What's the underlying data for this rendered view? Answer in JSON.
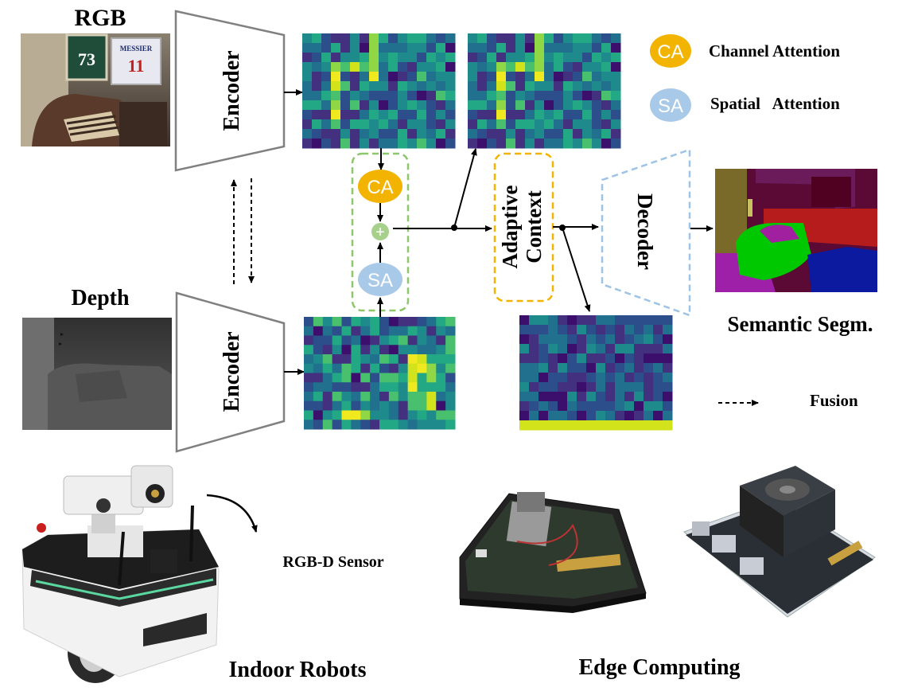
{
  "labels": {
    "rgb": "RGB",
    "depth": "Depth",
    "encoder_top": "Encoder",
    "encoder_bottom": "Encoder",
    "decoder": "Decoder",
    "adaptive_line1": "Adaptive",
    "adaptive_line2": "Context",
    "semantic_segm": "Semantic Segm.",
    "fusion": "Fusion",
    "rgbd_sensor": "RGB-D Sensor",
    "indoor_robots": "Indoor Robots",
    "edge_computing": "Edge Computing"
  },
  "legend": {
    "ca_badge": "CA",
    "ca_text": "Channel Attention",
    "sa_badge": "SA",
    "sa_text": "Spatial   Attention"
  },
  "nodes": {
    "ca_badge": "CA",
    "sa_badge": "SA",
    "plus": "+"
  },
  "photo_text": {
    "jersey_number": "73",
    "jersey_name": "MESSIER",
    "jersey_number2": "11"
  },
  "colors": {
    "ca": "#f2b400",
    "sa": "#a9c9e9",
    "plus": "#a8d08d",
    "attention_box": "#8dc66b",
    "adaptive_box": "#f2b400",
    "decoder_outline": "#9dc3e6",
    "encoder_outline": "#808080"
  }
}
